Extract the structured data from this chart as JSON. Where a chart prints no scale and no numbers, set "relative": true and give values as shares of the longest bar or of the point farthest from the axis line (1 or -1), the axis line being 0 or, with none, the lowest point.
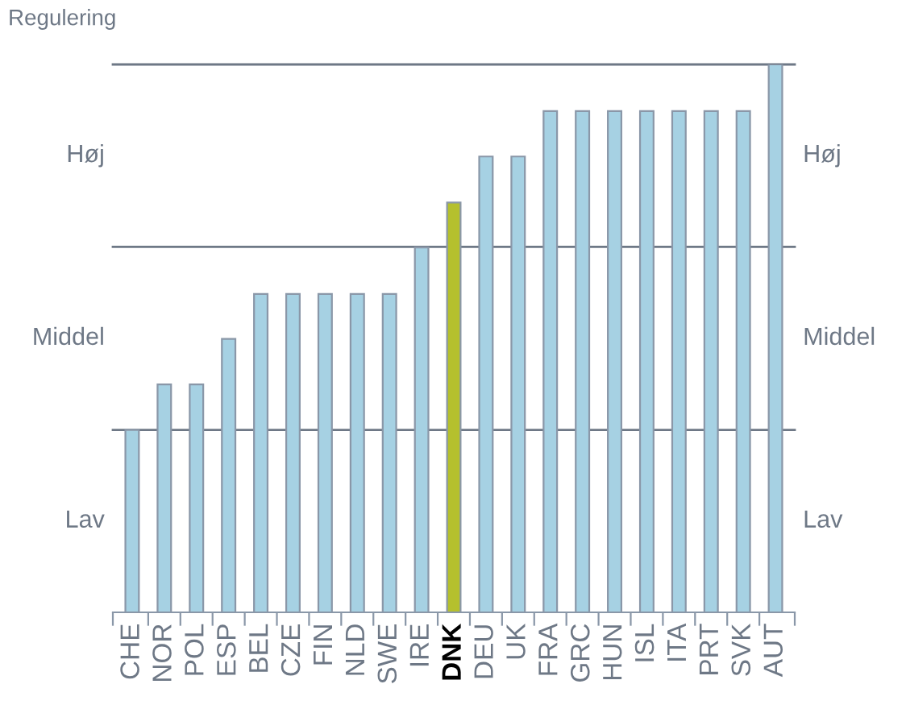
{
  "chart_data": {
    "type": "bar",
    "ylabel": "Regulering",
    "relative": true,
    "categories": [
      "CHE",
      "NOR",
      "POL",
      "ESP",
      "BEL",
      "CZE",
      "FIN",
      "NLD",
      "SWE",
      "IRE",
      "DNK",
      "DEU",
      "UK",
      "FRA",
      "GRC",
      "HUN",
      "ISL",
      "ITA",
      "PRT",
      "SVK",
      "AUT"
    ],
    "values": [
      0.333,
      0.416,
      0.416,
      0.499,
      0.581,
      0.581,
      0.581,
      0.581,
      0.581,
      0.666,
      0.748,
      0.832,
      0.832,
      0.915,
      0.915,
      0.915,
      0.915,
      0.915,
      0.915,
      0.915,
      1
    ],
    "colors": [
      "#a6d1e3",
      "#a6d1e3",
      "#a6d1e3",
      "#a6d1e3",
      "#a6d1e3",
      "#a6d1e3",
      "#a6d1e3",
      "#a6d1e3",
      "#a6d1e3",
      "#a6d1e3",
      "#b5c02e",
      "#a6d1e3",
      "#a6d1e3",
      "#a6d1e3",
      "#a6d1e3",
      "#a6d1e3",
      "#a6d1e3",
      "#a6d1e3",
      "#a6d1e3",
      "#a6d1e3",
      "#a6d1e3"
    ],
    "annotations": [
      "Lav",
      "Middel",
      "Høj"
    ],
    "ref_lines": [
      {
        "axis": "y",
        "value": 0.333,
        "color": "#6e7886"
      },
      {
        "axis": "y",
        "value": 0.667,
        "color": "#6e7886"
      },
      {
        "axis": "y",
        "value": 1,
        "color": "#6e7886"
      }
    ],
    "grid": false,
    "legend": false
  }
}
